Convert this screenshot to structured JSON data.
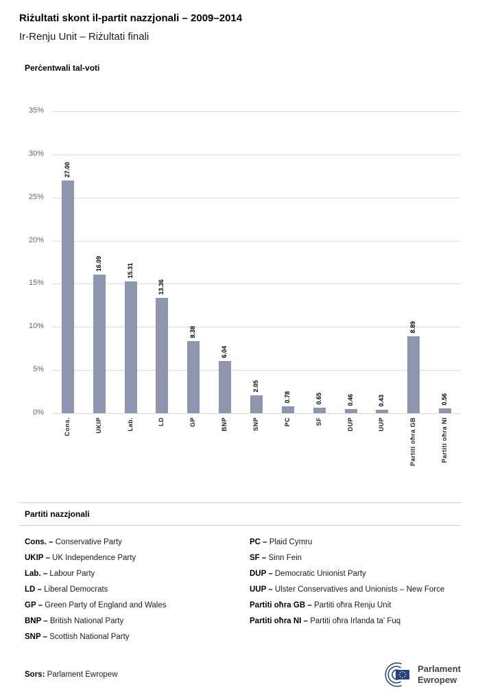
{
  "header": {
    "title": "Riżultati skont il-partit nazzjonali – 2009–2014",
    "subtitle": "Ir-Renju Unit – Riżultati finali"
  },
  "chart_data": {
    "type": "bar",
    "title": "Perċentwali tal-voti",
    "categories": [
      "Cons.",
      "UKIP",
      "Lab.",
      "LD",
      "GP",
      "BNP",
      "SNP",
      "PC",
      "SF",
      "DUP",
      "UUP",
      "Partiti oħra GB",
      "Partiti oħra NI"
    ],
    "values": [
      27.0,
      16.09,
      15.31,
      13.36,
      8.38,
      6.04,
      2.05,
      0.78,
      0.65,
      0.46,
      0.43,
      8.89,
      0.56
    ],
    "value_labels": [
      "27.00",
      "16.09",
      "15.31",
      "13.36",
      "8.38",
      "6.04",
      "2.05",
      "0.78",
      "0.65",
      "0.46",
      "0.43",
      "8.89",
      "0.56"
    ],
    "xlabel": "",
    "ylabel": "Perċentwali tal-voti",
    "ylim": [
      0,
      35
    ],
    "ytick_step": 5,
    "ytick_labels": [
      "0%",
      "5%",
      "10%",
      "15%",
      "20%",
      "25%",
      "30%",
      "35%"
    ],
    "grid": true,
    "legend_position": "none",
    "bar_color": "#8D95AF"
  },
  "legend": {
    "heading": "Partiti nazzjonali",
    "columns": [
      [
        {
          "abbr": "Cons. –",
          "name": "Conservative Party"
        },
        {
          "abbr": "UKIP –",
          "name": "UK Independence Party"
        },
        {
          "abbr": "Lab. –",
          "name": "Labour Party"
        },
        {
          "abbr": "LD –",
          "name": "Liberal Democrats"
        },
        {
          "abbr": "GP –",
          "name": "Green Party of England and Wales"
        },
        {
          "abbr": "BNP –",
          "name": "British National Party"
        },
        {
          "abbr": "SNP –",
          "name": "Scottish National Party"
        }
      ],
      [
        {
          "abbr": "PC –",
          "name": "Plaid Cymru"
        },
        {
          "abbr": "SF –",
          "name": "Sinn Fein"
        },
        {
          "abbr": "DUP –",
          "name": "Democratic Unionist Party"
        },
        {
          "abbr": "UUP –",
          "name": "Ulster Conservatives and Unionists – New Force"
        },
        {
          "abbr": "Partiti oħra GB –",
          "name": "Partiti oħra Renju Unit"
        },
        {
          "abbr": "Partiti oħra NI –",
          "name": "Partiti oħra Irlanda ta' Fuq"
        }
      ]
    ]
  },
  "footer": {
    "source_label": "Sors:",
    "source_value": "Parlament Ewropew",
    "logo": {
      "icon": "european-parliament-logo",
      "line1": "Parlament",
      "line2": "Ewropew",
      "flag_color": "#24418E",
      "star_color": "#F8D12C",
      "arc_color": "#2B4A68"
    }
  }
}
